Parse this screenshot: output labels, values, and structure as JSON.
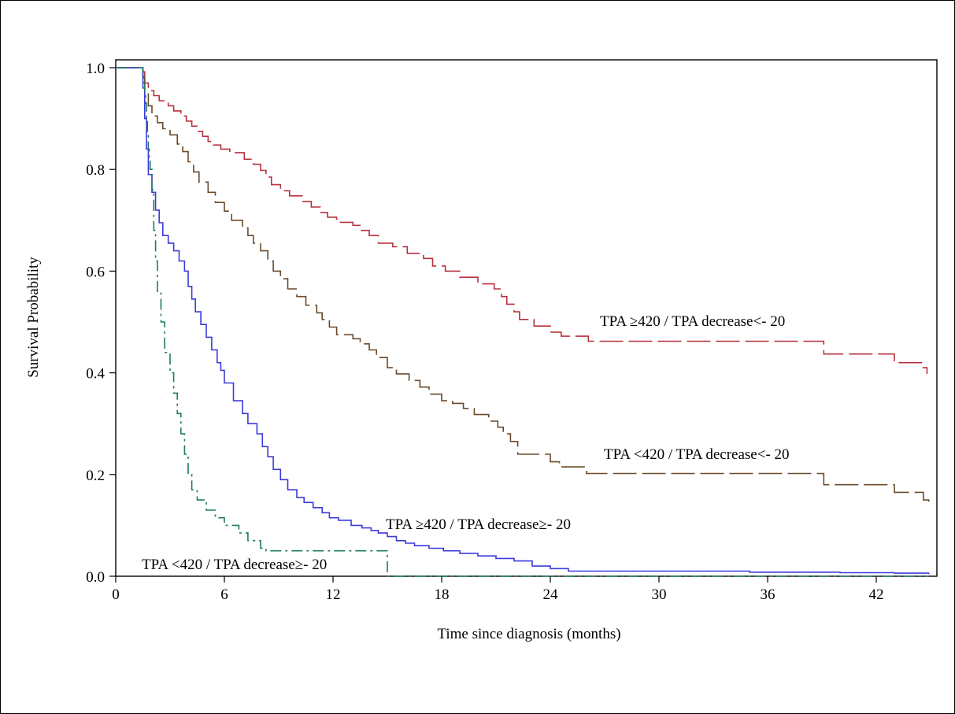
{
  "chart_data": {
    "type": "line",
    "subtype": "kaplan-meier step curves",
    "xlabel": "Time since diagnosis (months)",
    "ylabel": "Survival Probability",
    "xlim": [
      0,
      45
    ],
    "ylim": [
      0,
      1.0
    ],
    "x_ticks": [
      0,
      6,
      12,
      18,
      24,
      30,
      36,
      42
    ],
    "y_ticks": [
      "0.0",
      "0.2",
      "0.4",
      "0.6",
      "0.8",
      "1.0"
    ],
    "grid": false,
    "series": [
      {
        "name": "TPA ≥420 / TPA decrease<- 20",
        "color": "#b8303f",
        "dash": "long-dash",
        "x": [
          0,
          1.5,
          1.6,
          1.8,
          2.1,
          2.4,
          2.9,
          3.2,
          3.6,
          3.9,
          4.2,
          4.5,
          4.8,
          5.1,
          5.4,
          5.8,
          6.3,
          7.1,
          7.6,
          8.0,
          8.3,
          8.6,
          9.1,
          9.6,
          10.3,
          10.8,
          11.3,
          11.7,
          12.2,
          13.1,
          13.5,
          14.0,
          14.5,
          15.3,
          16.1,
          17.0,
          17.5,
          18.2,
          19.0,
          20.0,
          20.9,
          21.3,
          21.6,
          22.0,
          22.3,
          23.1,
          24.0,
          24.6,
          26.1,
          39.1,
          43.0,
          44.5,
          44.8
        ],
        "y": [
          1.0,
          0.992,
          0.97,
          0.955,
          0.945,
          0.935,
          0.925,
          0.915,
          0.905,
          0.895,
          0.885,
          0.875,
          0.865,
          0.855,
          0.848,
          0.84,
          0.833,
          0.82,
          0.81,
          0.798,
          0.785,
          0.77,
          0.758,
          0.748,
          0.737,
          0.726,
          0.715,
          0.706,
          0.696,
          0.69,
          0.68,
          0.67,
          0.655,
          0.648,
          0.635,
          0.625,
          0.61,
          0.6,
          0.588,
          0.575,
          0.565,
          0.55,
          0.535,
          0.52,
          0.505,
          0.492,
          0.48,
          0.472,
          0.462,
          0.437,
          0.42,
          0.41,
          0.398
        ]
      },
      {
        "name": "TPA <420 / TPA decrease<- 20",
        "color": "#6b4a2b",
        "dash": "long-dash",
        "x": [
          0,
          1.5,
          1.6,
          1.8,
          2.0,
          2.3,
          2.6,
          3.0,
          3.4,
          3.7,
          4.0,
          4.3,
          4.6,
          5.1,
          5.5,
          6.0,
          6.4,
          7.0,
          7.3,
          7.6,
          8.0,
          8.4,
          8.7,
          9.1,
          9.5,
          10.0,
          10.5,
          11.1,
          11.4,
          11.8,
          12.2,
          13.1,
          13.5,
          14.0,
          14.4,
          15.0,
          15.5,
          16.2,
          16.8,
          17.3,
          18.0,
          18.6,
          19.2,
          19.8,
          20.6,
          21.1,
          21.4,
          21.8,
          22.2,
          23.1,
          24.0,
          24.5,
          26.0,
          39.1,
          43.0,
          44.6,
          44.9
        ],
        "y": [
          1.0,
          0.98,
          0.95,
          0.925,
          0.905,
          0.892,
          0.88,
          0.868,
          0.85,
          0.835,
          0.815,
          0.795,
          0.775,
          0.755,
          0.735,
          0.718,
          0.7,
          0.685,
          0.67,
          0.655,
          0.64,
          0.62,
          0.6,
          0.585,
          0.565,
          0.55,
          0.533,
          0.518,
          0.505,
          0.49,
          0.475,
          0.467,
          0.457,
          0.445,
          0.43,
          0.41,
          0.398,
          0.385,
          0.372,
          0.358,
          0.345,
          0.34,
          0.33,
          0.318,
          0.305,
          0.293,
          0.28,
          0.265,
          0.24,
          0.24,
          0.225,
          0.215,
          0.202,
          0.18,
          0.165,
          0.15,
          0.145
        ]
      },
      {
        "name": "TPA ≥420 / TPA decrease≥- 20",
        "color": "#3b3bd9",
        "dash": "solid",
        "x": [
          0,
          1.5,
          1.6,
          1.7,
          1.8,
          2.0,
          2.2,
          2.4,
          2.6,
          2.9,
          3.2,
          3.5,
          3.8,
          4.0,
          4.2,
          4.4,
          4.7,
          5.0,
          5.3,
          5.6,
          5.8,
          6.0,
          6.5,
          7.0,
          7.3,
          7.8,
          8.1,
          8.4,
          8.7,
          9.1,
          9.5,
          10.0,
          10.4,
          10.9,
          11.4,
          11.8,
          12.3,
          13.0,
          13.6,
          14.1,
          14.5,
          15.0,
          15.5,
          16.0,
          16.5,
          17.3,
          18.1,
          19.0,
          20.0,
          21.0,
          22.0,
          23.0,
          24.0,
          25.0,
          35.0,
          40.0,
          43.0,
          44.9
        ],
        "y": [
          1.0,
          0.96,
          0.9,
          0.84,
          0.79,
          0.755,
          0.72,
          0.695,
          0.67,
          0.655,
          0.64,
          0.62,
          0.6,
          0.57,
          0.545,
          0.52,
          0.495,
          0.47,
          0.445,
          0.42,
          0.405,
          0.38,
          0.345,
          0.32,
          0.3,
          0.28,
          0.255,
          0.235,
          0.21,
          0.19,
          0.17,
          0.155,
          0.145,
          0.135,
          0.125,
          0.115,
          0.11,
          0.1,
          0.095,
          0.09,
          0.085,
          0.078,
          0.07,
          0.065,
          0.06,
          0.055,
          0.05,
          0.045,
          0.04,
          0.035,
          0.03,
          0.02,
          0.015,
          0.01,
          0.008,
          0.007,
          0.006,
          0.004
        ]
      },
      {
        "name": "TPA <420 / TPA decrease≥- 20",
        "color": "#1f7a64",
        "dash": "dash-dot",
        "x": [
          0,
          1.5,
          1.55,
          1.6,
          1.65,
          1.7,
          1.75,
          1.8,
          1.85,
          1.9,
          2.0,
          2.1,
          2.2,
          2.3,
          2.5,
          2.7,
          3.0,
          3.2,
          3.4,
          3.6,
          3.8,
          4.0,
          4.2,
          4.5,
          5.0,
          5.5,
          6.0,
          6.8,
          7.3,
          8.0,
          8.3,
          15.0,
          20.0,
          30.0,
          40.0,
          44.9
        ],
        "y": [
          1.0,
          0.99,
          0.97,
          0.95,
          0.93,
          0.9,
          0.87,
          0.84,
          0.82,
          0.8,
          0.76,
          0.68,
          0.62,
          0.56,
          0.5,
          0.44,
          0.4,
          0.36,
          0.32,
          0.28,
          0.24,
          0.2,
          0.17,
          0.15,
          0.13,
          0.115,
          0.1,
          0.085,
          0.07,
          0.055,
          0.05,
          0.0,
          0.0,
          0.0,
          0.0,
          0.0
        ]
      }
    ]
  }
}
